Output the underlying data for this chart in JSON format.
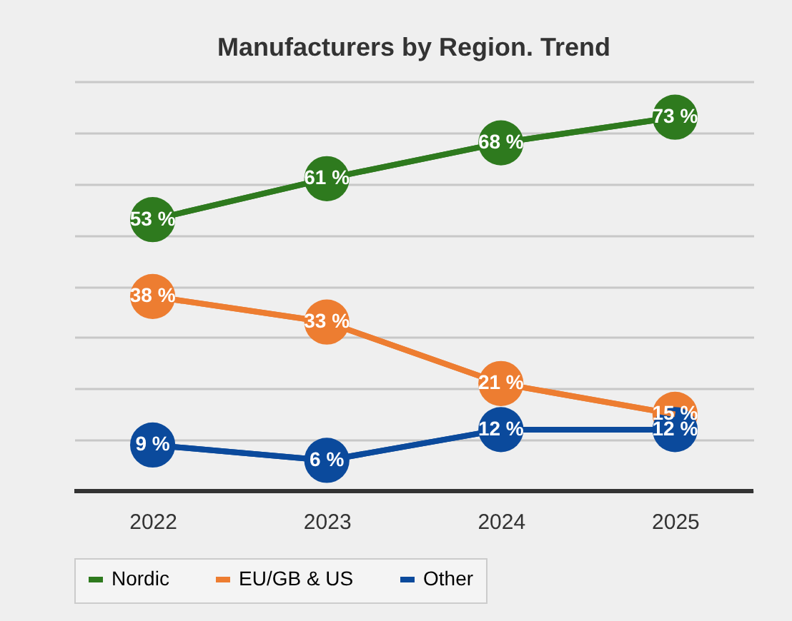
{
  "chart_data": {
    "type": "line",
    "title": "Manufacturers by Region. Trend",
    "categories": [
      "2022",
      "2023",
      "2024",
      "2025"
    ],
    "series": [
      {
        "name": "Nordic",
        "color": "#2e7a1e",
        "values": [
          53,
          61,
          68,
          73
        ],
        "value_labels": [
          "53 %",
          "61 %",
          "68 %",
          "73 %"
        ]
      },
      {
        "name": "EU/GB & US",
        "color": "#ed7d31",
        "values": [
          38,
          33,
          21,
          15
        ],
        "value_labels": [
          "38 %",
          "33 %",
          "21 %",
          "15 %"
        ]
      },
      {
        "name": "Other",
        "color": "#0b4a9c",
        "values": [
          9,
          6,
          12,
          12
        ],
        "value_labels": [
          "9 %",
          "6 %",
          "12 %",
          "12 %"
        ]
      }
    ],
    "tick_labels": "x",
    "grid": "y",
    "legend": "bottom",
    "marker": "circle",
    "line_style": "solid"
  }
}
